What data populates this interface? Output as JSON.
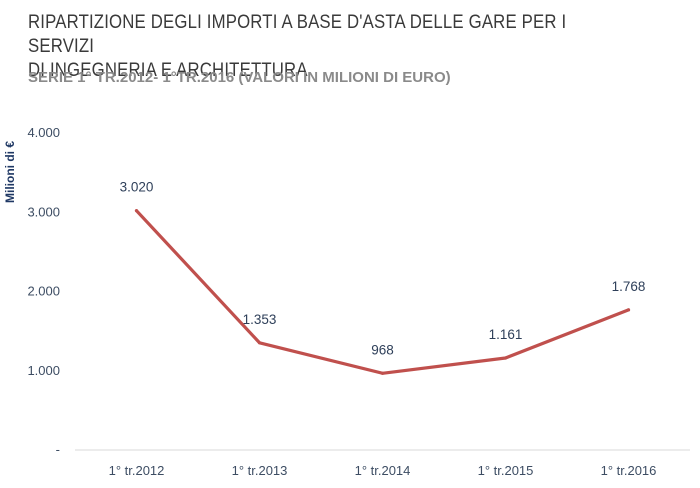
{
  "chart_data": {
    "type": "line",
    "title_lines": [
      "RIPARTIZIONE DEGLI IMPORTI A BASE D'ASTA DELLE GARE PER I SERVIZI",
      "DI INGEGNERIA E ARCHITETTURA"
    ],
    "subtitle": "SERIE 1° TR.2012- 1°TR.2016 (VALORI IN MILIONI DI EURO)",
    "ylabel": "Milioni di €",
    "xlabel": "",
    "categories": [
      "1° tr.2012",
      "1° tr.2013",
      "1° tr.2014",
      "1° tr.2015",
      "1° tr.2016"
    ],
    "series": [
      {
        "values": [
          3020,
          1353,
          968,
          1161,
          1768
        ],
        "data_labels": [
          "3.020",
          "1.353",
          "968",
          "1.161",
          "1.768"
        ],
        "color": "#c0504d"
      }
    ],
    "ylim": [
      0,
      4000
    ],
    "yticks": [
      0,
      1000,
      2000,
      3000,
      4000
    ],
    "ytick_labels": [
      "-",
      "1.000",
      "2.000",
      "3.000",
      "4.000"
    ],
    "grid": false,
    "legend": "none",
    "colors": {
      "line": "#c0504d",
      "text": "#2e3f59",
      "axis_label": "#1f3864",
      "baseline": "#d9d9d9"
    }
  }
}
